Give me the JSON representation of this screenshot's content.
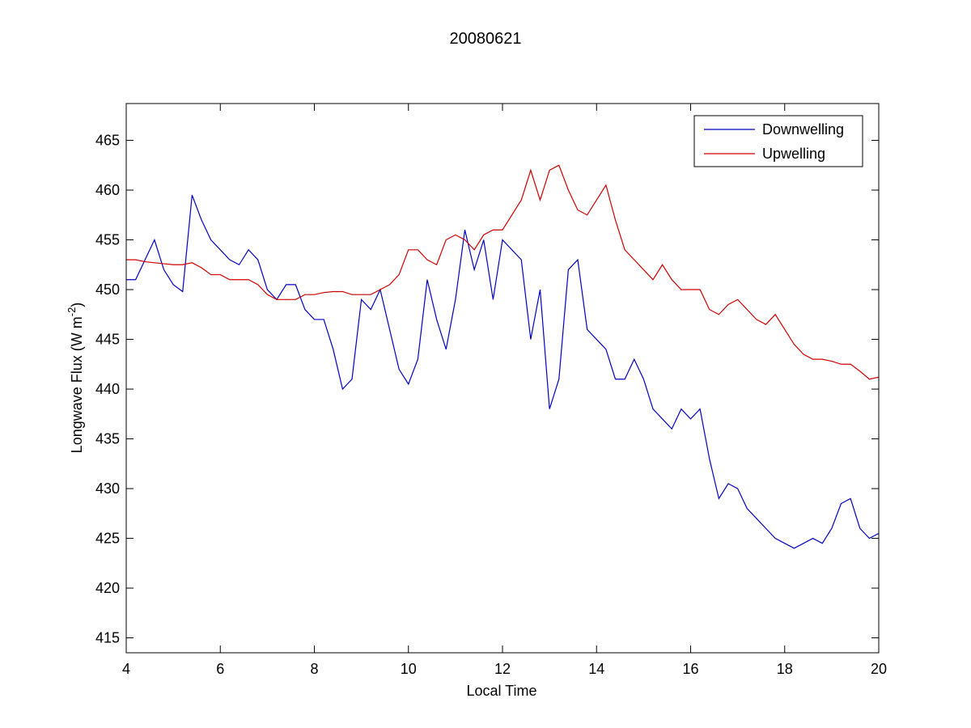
{
  "chart_data": {
    "type": "line",
    "title": "20080621",
    "xlabel": "Local Time",
    "ylabel": {
      "text": "Longwave Flux (W m",
      "superscript": "-2",
      "suffix": ")"
    },
    "xlim": [
      4,
      20
    ],
    "xticks": [
      4,
      6,
      8,
      10,
      12,
      14,
      16,
      18,
      20
    ],
    "ylim": [
      413.5,
      468.7
    ],
    "yticks": [
      415,
      420,
      425,
      430,
      435,
      440,
      445,
      450,
      455,
      460,
      465
    ],
    "legend": "upper right",
    "grid": false,
    "x": [
      4,
      4.2,
      4.4,
      4.6,
      4.8,
      5,
      5.2,
      5.4,
      5.6,
      5.8,
      6,
      6.2,
      6.4,
      6.6,
      6.8,
      7,
      7.2,
      7.4,
      7.6,
      7.8,
      8,
      8.2,
      8.4,
      8.6,
      8.8,
      9,
      9.2,
      9.4,
      9.6,
      9.8,
      10,
      10.2,
      10.4,
      10.6,
      10.8,
      11,
      11.2,
      11.4,
      11.6,
      11.8,
      12,
      12.2,
      12.4,
      12.6,
      12.8,
      13,
      13.2,
      13.4,
      13.6,
      13.8,
      14,
      14.2,
      14.4,
      14.6,
      14.8,
      15,
      15.2,
      15.4,
      15.6,
      15.8,
      16,
      16.2,
      16.4,
      16.6,
      16.8,
      17,
      17.2,
      17.4,
      17.6,
      17.8,
      18,
      18.2,
      18.4,
      18.6,
      18.8,
      19,
      19.2,
      19.4,
      19.6,
      19.8,
      20
    ],
    "series": [
      {
        "name": "Downwelling",
        "color": "#0000c0",
        "values": [
          451,
          451,
          453,
          455,
          452,
          450.5,
          449.8,
          459.5,
          457,
          455,
          454,
          453,
          452.5,
          454,
          453,
          450,
          449,
          450.5,
          450.5,
          448,
          447,
          447,
          444,
          440,
          441,
          449,
          448,
          450,
          446,
          442,
          440.5,
          443,
          451,
          447,
          444,
          449,
          456,
          452,
          455,
          449,
          455,
          454,
          453,
          445,
          450,
          438,
          441,
          452,
          453,
          446,
          445,
          444,
          441,
          441,
          443,
          441,
          438,
          437,
          436,
          438,
          437,
          438,
          433,
          429,
          430.5,
          430,
          428,
          427,
          426,
          425,
          424.5,
          424,
          424.5,
          425,
          424.5,
          426,
          428.5,
          429,
          426,
          425,
          425.5
        ]
      },
      {
        "name": "Upwelling",
        "color": "#d00000",
        "values": [
          453,
          453,
          452.8,
          452.7,
          452.6,
          452.5,
          452.5,
          452.7,
          452.2,
          451.5,
          451.5,
          451,
          451,
          451,
          450.5,
          449.5,
          449,
          449,
          449,
          449.5,
          449.5,
          449.7,
          449.8,
          449.8,
          449.5,
          449.5,
          449.5,
          450,
          450.5,
          451.5,
          454,
          454,
          453,
          452.5,
          455,
          455.5,
          455,
          454,
          455.5,
          456,
          456,
          457.5,
          459,
          462,
          459,
          462,
          462.5,
          460,
          458,
          457.5,
          459,
          460.5,
          457,
          454,
          453,
          452,
          451,
          452.5,
          451,
          450,
          450,
          450,
          448,
          447.5,
          448.5,
          449,
          448,
          447,
          446.5,
          447.5,
          446,
          444.5,
          443.5,
          443,
          443,
          442.8,
          442.5,
          442.5,
          441.8,
          441,
          441.2
        ]
      }
    ]
  }
}
